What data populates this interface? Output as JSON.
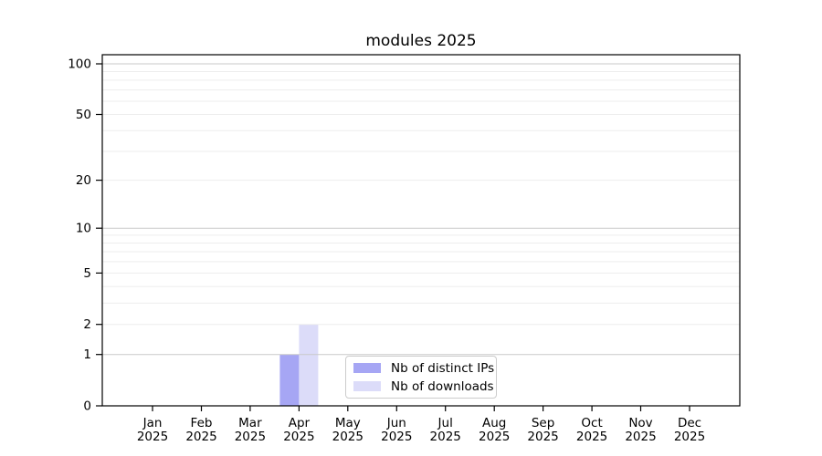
{
  "chart_data": {
    "type": "bar",
    "title": "modules 2025",
    "categories": [
      "Jan",
      "Feb",
      "Mar",
      "Apr",
      "May",
      "Jun",
      "Jul",
      "Aug",
      "Sep",
      "Oct",
      "Nov",
      "Dec"
    ],
    "category_year": "2025",
    "series": [
      {
        "name": "Nb of distinct IPs",
        "color": "#a6a6f4",
        "values": [
          0,
          0,
          0,
          1,
          0,
          0,
          0,
          0,
          0,
          0,
          0,
          0
        ]
      },
      {
        "name": "Nb of downloads",
        "color": "#dcdcf9",
        "values": [
          0,
          0,
          0,
          2,
          0,
          0,
          0,
          0,
          0,
          0,
          0,
          0
        ]
      }
    ],
    "y_axis": {
      "scale": "log10(1+value)",
      "tick_values": [
        0,
        1,
        2,
        5,
        10,
        20,
        50,
        100
      ],
      "major_gridlines": [
        1,
        10,
        100
      ],
      "minor_gridlines": [
        2,
        3,
        4,
        5,
        6,
        7,
        8,
        9,
        20,
        30,
        40,
        50,
        60,
        70,
        80,
        90
      ],
      "range": [
        0,
        113
      ]
    },
    "legend_position": "lower center",
    "grid": true
  },
  "colors": {
    "axis": "#000000",
    "text": "#000000",
    "major_grid": "#c9c9c9",
    "minor_grid": "#ededed",
    "legend_border": "#cccccc"
  }
}
